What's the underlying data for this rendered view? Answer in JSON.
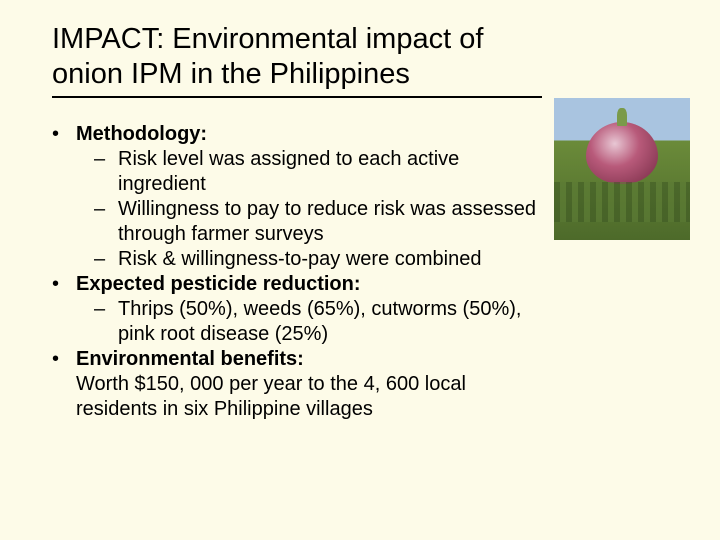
{
  "slide": {
    "title": "IMPACT: Environmental impact of onion IPM in the Philippines",
    "background_color": "#fdfbe8",
    "title_fontsize": 29,
    "body_fontsize": 20,
    "bullets": [
      {
        "label": "Methodology:",
        "sub": [
          "Risk level was assigned to each active ingredient",
          "Willingness to pay to reduce risk was assessed through farmer surveys",
          "Risk & willingness-to-pay were combined"
        ]
      },
      {
        "label": "Expected pesticide reduction:",
        "sub": [
          "Thrips (50%), weeds (65%), cutworms (50%), pink root disease (25%)"
        ]
      },
      {
        "label": "Environmental benefits:",
        "body": "Worth $150, 000 per year to the 4, 600 local residents in six Philippine villages"
      }
    ],
    "image": {
      "alt": "onion-field-photo",
      "sky_color": "#a9c4e0",
      "field_color": "#4d6a2a",
      "onion_color": "#b85a7a"
    }
  }
}
